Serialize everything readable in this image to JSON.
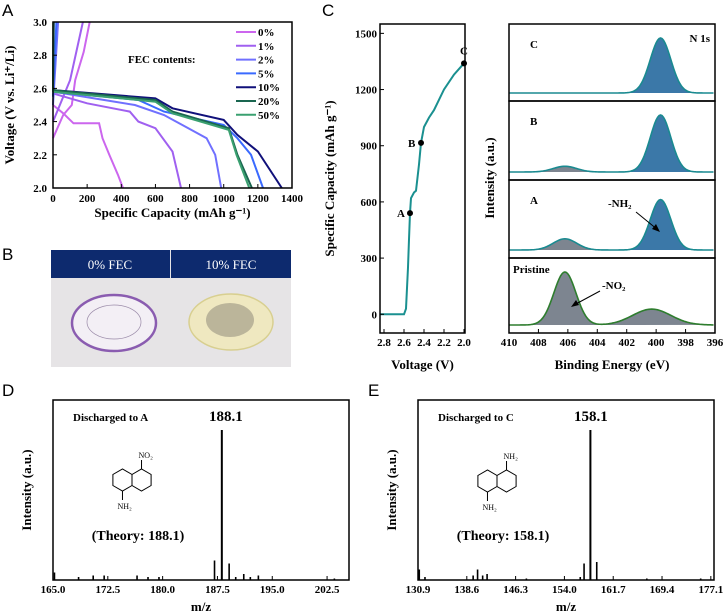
{
  "panel_labels": {
    "a": "A",
    "b": "B",
    "c": "C",
    "d": "D",
    "e": "E"
  },
  "panel_b": {
    "left_label": "0% FEC",
    "right_label": "10% FEC",
    "header_color": "#0d2a6e"
  },
  "chart_data": [
    {
      "id": "A",
      "type": "line",
      "xlabel": "Specific Capacity (mAh g⁻¹)",
      "ylabel": "Voltage (V vs. Li⁺/Li)",
      "xlim": [
        0,
        1400
      ],
      "ylim": [
        2.0,
        3.0
      ],
      "xticks": [
        0,
        200,
        400,
        600,
        800,
        1000,
        1200,
        1400
      ],
      "yticks": [
        2.0,
        2.2,
        2.4,
        2.6,
        2.8,
        3.0
      ],
      "legend_title": "FEC contents:",
      "legend_position": "top-right",
      "series": [
        {
          "name": "0%",
          "color": "#cc66ee",
          "discharge": [
            [
              0,
              2.5
            ],
            [
              60,
              2.45
            ],
            [
              120,
              2.39
            ],
            [
              270,
              2.39
            ],
            [
              290,
              2.3
            ],
            [
              330,
              2.2
            ],
            [
              380,
              2.08
            ],
            [
              410,
              2.0
            ]
          ],
          "charge": [
            [
              0,
              2.3
            ],
            [
              60,
              2.44
            ],
            [
              110,
              2.5
            ],
            [
              130,
              2.65
            ],
            [
              180,
              2.82
            ],
            [
              215,
              3.0
            ]
          ]
        },
        {
          "name": "1%",
          "color": "#a060f0",
          "discharge": [
            [
              0,
              2.57
            ],
            [
              200,
              2.51
            ],
            [
              450,
              2.46
            ],
            [
              500,
              2.4
            ],
            [
              600,
              2.36
            ],
            [
              700,
              2.22
            ],
            [
              750,
              2.0
            ]
          ],
          "charge": [
            [
              0,
              2.4
            ],
            [
              100,
              2.65
            ],
            [
              175,
              3.0
            ]
          ]
        },
        {
          "name": "2%",
          "color": "#7070ff",
          "discharge": [
            [
              0,
              2.58
            ],
            [
              300,
              2.53
            ],
            [
              480,
              2.5
            ],
            [
              650,
              2.44
            ],
            [
              900,
              2.3
            ],
            [
              950,
              2.2
            ],
            [
              985,
              2.0
            ]
          ],
          "charge": [
            [
              0,
              2.5
            ],
            [
              30,
              3.0
            ]
          ]
        },
        {
          "name": "5%",
          "color": "#3a6aff",
          "discharge": [
            [
              0,
              2.58
            ],
            [
              500,
              2.53
            ],
            [
              650,
              2.46
            ],
            [
              1000,
              2.38
            ],
            [
              1080,
              2.3
            ],
            [
              1160,
              2.2
            ],
            [
              1230,
              2.0
            ]
          ],
          "charge": [
            [
              0,
              2.55
            ],
            [
              20,
              3.0
            ]
          ]
        },
        {
          "name": "10%",
          "color": "#10107a",
          "discharge": [
            [
              0,
              2.59
            ],
            [
              600,
              2.54
            ],
            [
              700,
              2.48
            ],
            [
              1000,
              2.41
            ],
            [
              1080,
              2.32
            ],
            [
              1200,
              2.22
            ],
            [
              1340,
              2.0
            ]
          ],
          "charge": [
            [
              0,
              2.59
            ],
            [
              5,
              3.0
            ]
          ]
        },
        {
          "name": "20%",
          "color": "#1a6650",
          "discharge": [
            [
              0,
              2.59
            ],
            [
              600,
              2.53
            ],
            [
              700,
              2.46
            ],
            [
              1030,
              2.36
            ],
            [
              1080,
              2.2
            ],
            [
              1165,
              2.0
            ]
          ],
          "charge": [
            [
              0,
              2.59
            ],
            [
              3,
              3.0
            ]
          ]
        },
        {
          "name": "50%",
          "color": "#3aa070",
          "discharge": [
            [
              0,
              2.58
            ],
            [
              600,
              2.52
            ],
            [
              700,
              2.45
            ],
            [
              1030,
              2.35
            ],
            [
              1075,
              2.2
            ],
            [
              1150,
              2.0
            ]
          ],
          "charge": [
            [
              0,
              2.58
            ],
            [
              2,
              3.0
            ]
          ]
        }
      ]
    },
    {
      "id": "C-left",
      "type": "line",
      "xlabel": "Voltage (V)",
      "ylabel": "Specific Capacity (mAh g⁻¹)",
      "xlim": [
        2.84,
        1.99
      ],
      "ylim": [
        -100,
        1550
      ],
      "xticks": [
        2.8,
        2.6,
        2.4,
        2.2,
        2.0
      ],
      "yticks": [
        0,
        300,
        600,
        900,
        1200,
        1500
      ],
      "color": "#1a9090",
      "points": [
        [
          2.84,
          0
        ],
        [
          2.6,
          0
        ],
        [
          2.58,
          30
        ],
        [
          2.56,
          250
        ],
        [
          2.55,
          400
        ],
        [
          2.54,
          540
        ],
        [
          2.53,
          620
        ],
        [
          2.5,
          650
        ],
        [
          2.48,
          660
        ],
        [
          2.45,
          800
        ],
        [
          2.43,
          915
        ],
        [
          2.4,
          1000
        ],
        [
          2.35,
          1050
        ],
        [
          2.3,
          1090
        ],
        [
          2.2,
          1200
        ],
        [
          2.1,
          1280
        ],
        [
          2.0,
          1340
        ]
      ],
      "markers": [
        {
          "label": "A",
          "x": 2.54,
          "y": 540
        },
        {
          "label": "B",
          "x": 2.43,
          "y": 915
        },
        {
          "label": "C",
          "x": 2.0,
          "y": 1340
        }
      ]
    },
    {
      "id": "C-right",
      "type": "area",
      "xlabel": "Binding Energy (eV)",
      "ylabel": "Intensity (a.u.)",
      "xlim": [
        410,
        396
      ],
      "xticks": [
        410,
        408,
        406,
        404,
        402,
        400,
        398,
        396
      ],
      "title": "N 1s",
      "annotations": {
        "nh2": "-NH₂",
        "no2": "-NO₂"
      },
      "colors": {
        "nh2_fill": "#3b78a8",
        "no2_fill": "#7d8590",
        "fit_line": "#1a8a90",
        "pristine_line": "#2e7d2e"
      },
      "spectra": [
        {
          "label": "C",
          "peaks": [
            {
              "center": 399.7,
              "height": 1.0,
              "sigma": 0.7,
              "type": "nh2"
            }
          ]
        },
        {
          "label": "B",
          "peaks": [
            {
              "center": 406.2,
              "height": 0.1,
              "sigma": 0.8,
              "type": "no2"
            },
            {
              "center": 399.7,
              "height": 1.0,
              "sigma": 0.7,
              "type": "nh2"
            }
          ]
        },
        {
          "label": "A",
          "peaks": [
            {
              "center": 406.2,
              "height": 0.2,
              "sigma": 0.8,
              "type": "no2"
            },
            {
              "center": 399.7,
              "height": 0.9,
              "sigma": 0.7,
              "type": "nh2"
            }
          ]
        },
        {
          "label": "Pristine",
          "peaks": [
            {
              "center": 406.2,
              "height": 1.0,
              "sigma": 0.75,
              "type": "no2"
            },
            {
              "center": 400.3,
              "height": 0.3,
              "sigma": 1.3,
              "type": "no2"
            }
          ]
        }
      ]
    },
    {
      "id": "D",
      "type": "bar",
      "xlabel": "m/z",
      "ylabel": "Intensity (a.u.)",
      "xlim": [
        165,
        205.5
      ],
      "ylim": [
        0,
        1.2
      ],
      "xticks": [
        "165.0",
        "172.5",
        "180.0",
        "187.5",
        "195.0",
        "202.5"
      ],
      "title": "Discharged to A",
      "peak_label": "188.1",
      "theory": "(Theory: 188.1)",
      "structure": {
        "top": "NO₂",
        "bottom": "NH₂"
      },
      "peaks": [
        [
          165.2,
          0.05
        ],
        [
          168.5,
          0.02
        ],
        [
          170.5,
          0.03
        ],
        [
          172,
          0.03
        ],
        [
          176.5,
          0.03
        ],
        [
          178,
          0.02
        ],
        [
          179.5,
          0.02
        ],
        [
          187.1,
          0.13
        ],
        [
          188.1,
          1.0
        ],
        [
          189.1,
          0.11
        ],
        [
          190,
          0.02
        ],
        [
          191.1,
          0.04
        ],
        [
          192,
          0.02
        ],
        [
          193.1,
          0.03
        ],
        [
          203.5,
          0.01
        ]
      ]
    },
    {
      "id": "E",
      "type": "bar",
      "xlabel": "m/z",
      "ylabel": "Intensity (a.u.)",
      "xlim": [
        130.9,
        177.6
      ],
      "ylim": [
        0,
        1.2
      ],
      "xticks": [
        "130.9",
        "138.6",
        "146.3",
        "154.0",
        "161.7",
        "169.4",
        "177.1"
      ],
      "title": "Discharged to C",
      "peak_label": "158.1",
      "theory": "(Theory: 158.1)",
      "structure": {
        "top": "NH₂",
        "bottom": "NH₂"
      },
      "peaks": [
        [
          131.1,
          0.07
        ],
        [
          132,
          0.02
        ],
        [
          139.6,
          0.03
        ],
        [
          140.3,
          0.07
        ],
        [
          141.1,
          0.03
        ],
        [
          141.8,
          0.04
        ],
        [
          148,
          0.01
        ],
        [
          156.5,
          0.02
        ],
        [
          157.1,
          0.11
        ],
        [
          158.1,
          1.0
        ],
        [
          159.1,
          0.12
        ],
        [
          167,
          0.01
        ],
        [
          175.5,
          0.01
        ]
      ]
    }
  ]
}
